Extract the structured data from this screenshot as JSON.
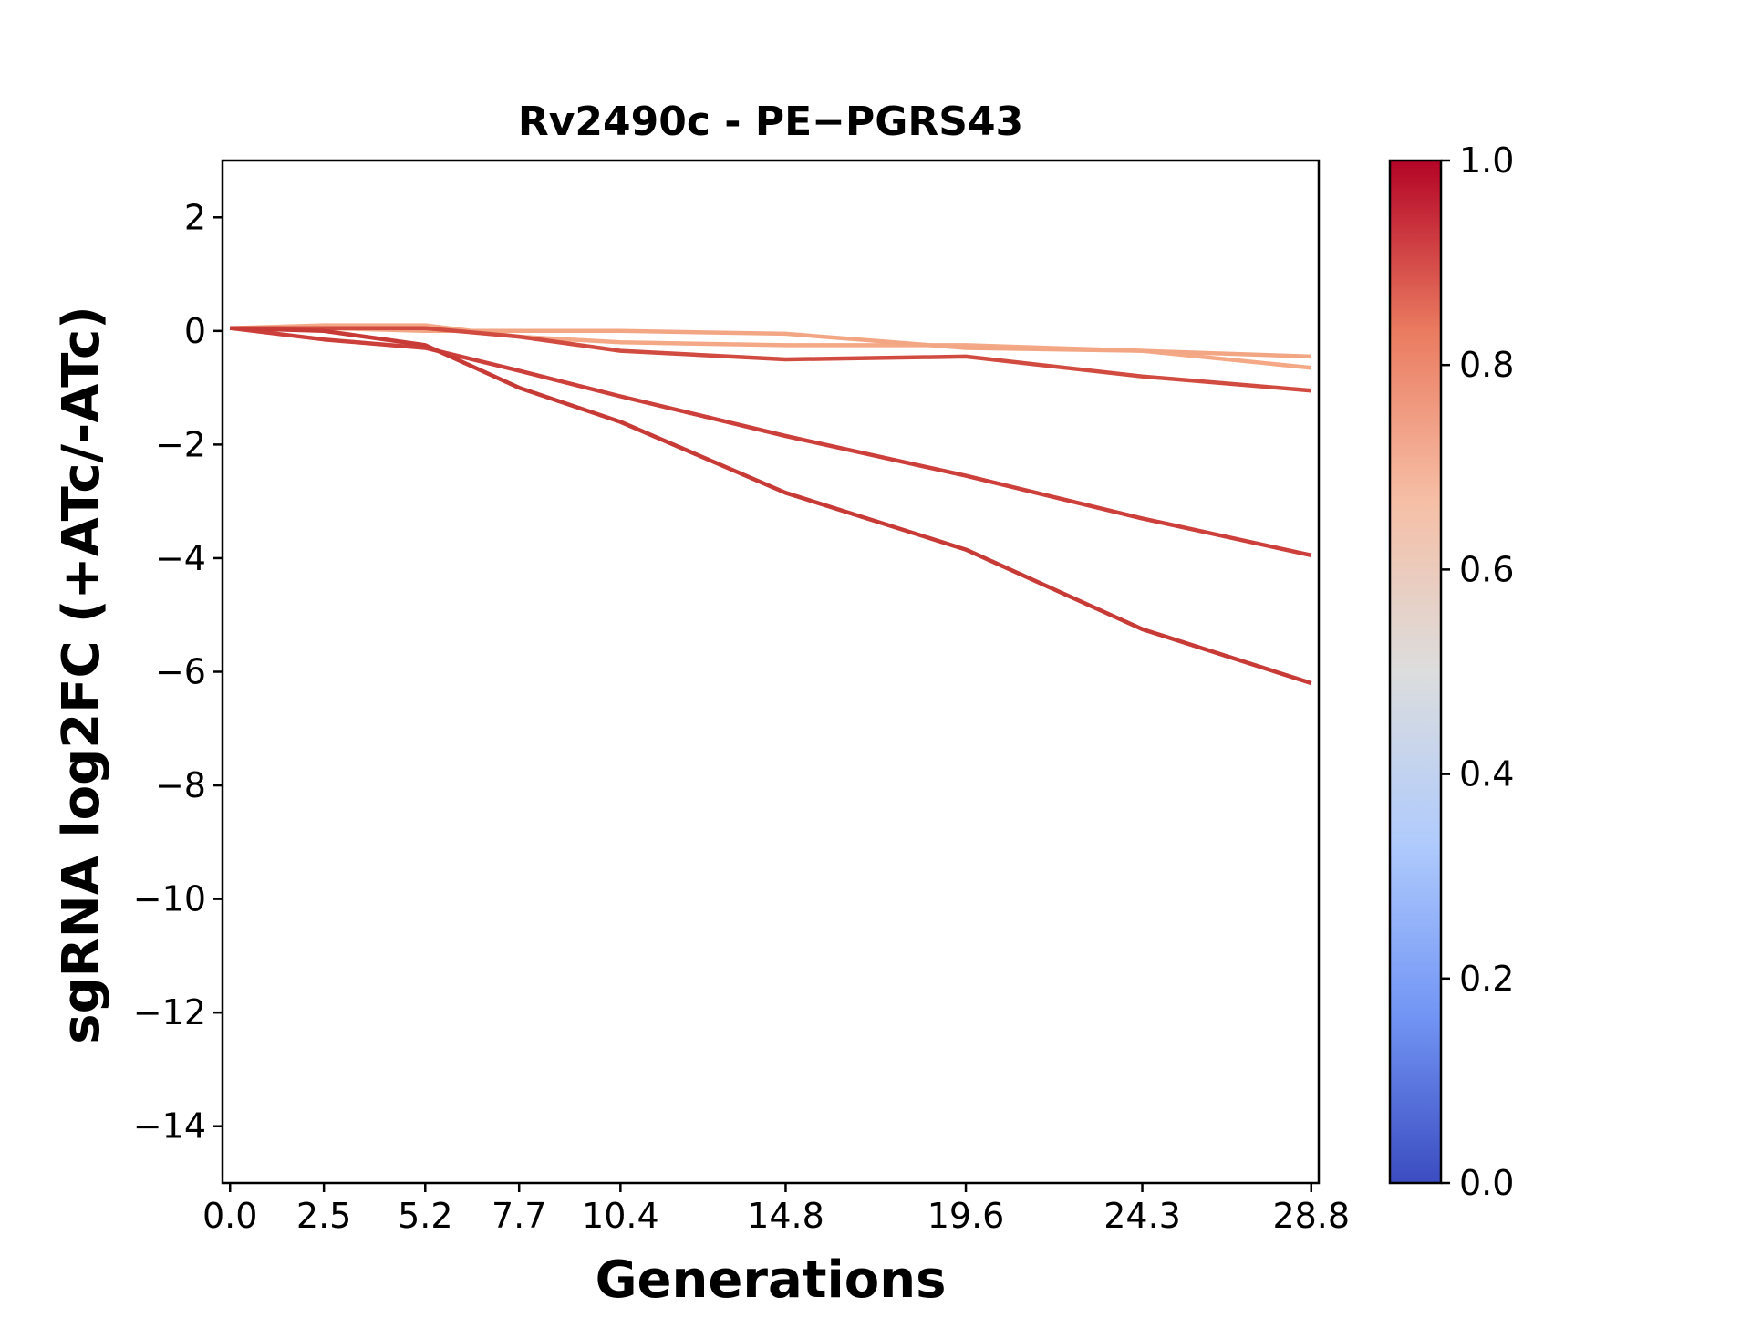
{
  "chart_data": {
    "type": "line",
    "title": "Rv2490c - PE−PGRS43",
    "xlabel": "Generations",
    "ylabel": "sgRNA log2FC (+ATc/-ATc)",
    "x": [
      0.0,
      2.5,
      5.2,
      7.7,
      10.4,
      14.8,
      19.6,
      24.3,
      28.8
    ],
    "x_tick_labels": [
      "0.0",
      "2.5",
      "5.2",
      "7.7",
      "10.4",
      "14.8",
      "19.6",
      "24.3",
      "28.8"
    ],
    "xlim": [
      -0.2,
      29.0
    ],
    "ylim": [
      -15,
      3
    ],
    "y_ticks": [
      2,
      0,
      -2,
      -4,
      -6,
      -8,
      -10,
      -12,
      -14
    ],
    "y_tick_labels": [
      "2",
      "0",
      "−2",
      "−4",
      "−6",
      "−8",
      "−10",
      "−12",
      "−14"
    ],
    "grid": false,
    "colormap": {
      "name": "coolwarm",
      "range": [
        0.0,
        1.0
      ],
      "ticks": [
        "0.0",
        "0.2",
        "0.4",
        "0.6",
        "0.8",
        "1.0"
      ],
      "stops": [
        "#3b4cc0",
        "#7396f5",
        "#b0cbfc",
        "#dcdddd",
        "#f6bfa6",
        "#ea7b60",
        "#b40426"
      ]
    },
    "series": [
      {
        "color": "#f4a886",
        "values": [
          0.05,
          0.1,
          0.1,
          -0.1,
          -0.2,
          -0.25,
          -0.25,
          -0.35,
          -0.65
        ]
      },
      {
        "color": "#f2a684",
        "values": [
          0.05,
          0.05,
          0.0,
          0.0,
          0.0,
          -0.05,
          -0.3,
          -0.35,
          -0.45
        ]
      },
      {
        "color": "#d24b40",
        "values": [
          0.05,
          0.05,
          0.05,
          -0.1,
          -0.35,
          -0.5,
          -0.45,
          -0.8,
          -1.05
        ]
      },
      {
        "color": "#cc3f3a",
        "values": [
          0.05,
          -0.15,
          -0.3,
          -0.7,
          -1.15,
          -1.85,
          -2.55,
          -3.3,
          -3.95
        ]
      },
      {
        "color": "#c73a36",
        "values": [
          0.05,
          0.0,
          -0.25,
          -1.0,
          -1.6,
          -2.85,
          -3.85,
          -5.25,
          -6.2
        ]
      }
    ]
  }
}
